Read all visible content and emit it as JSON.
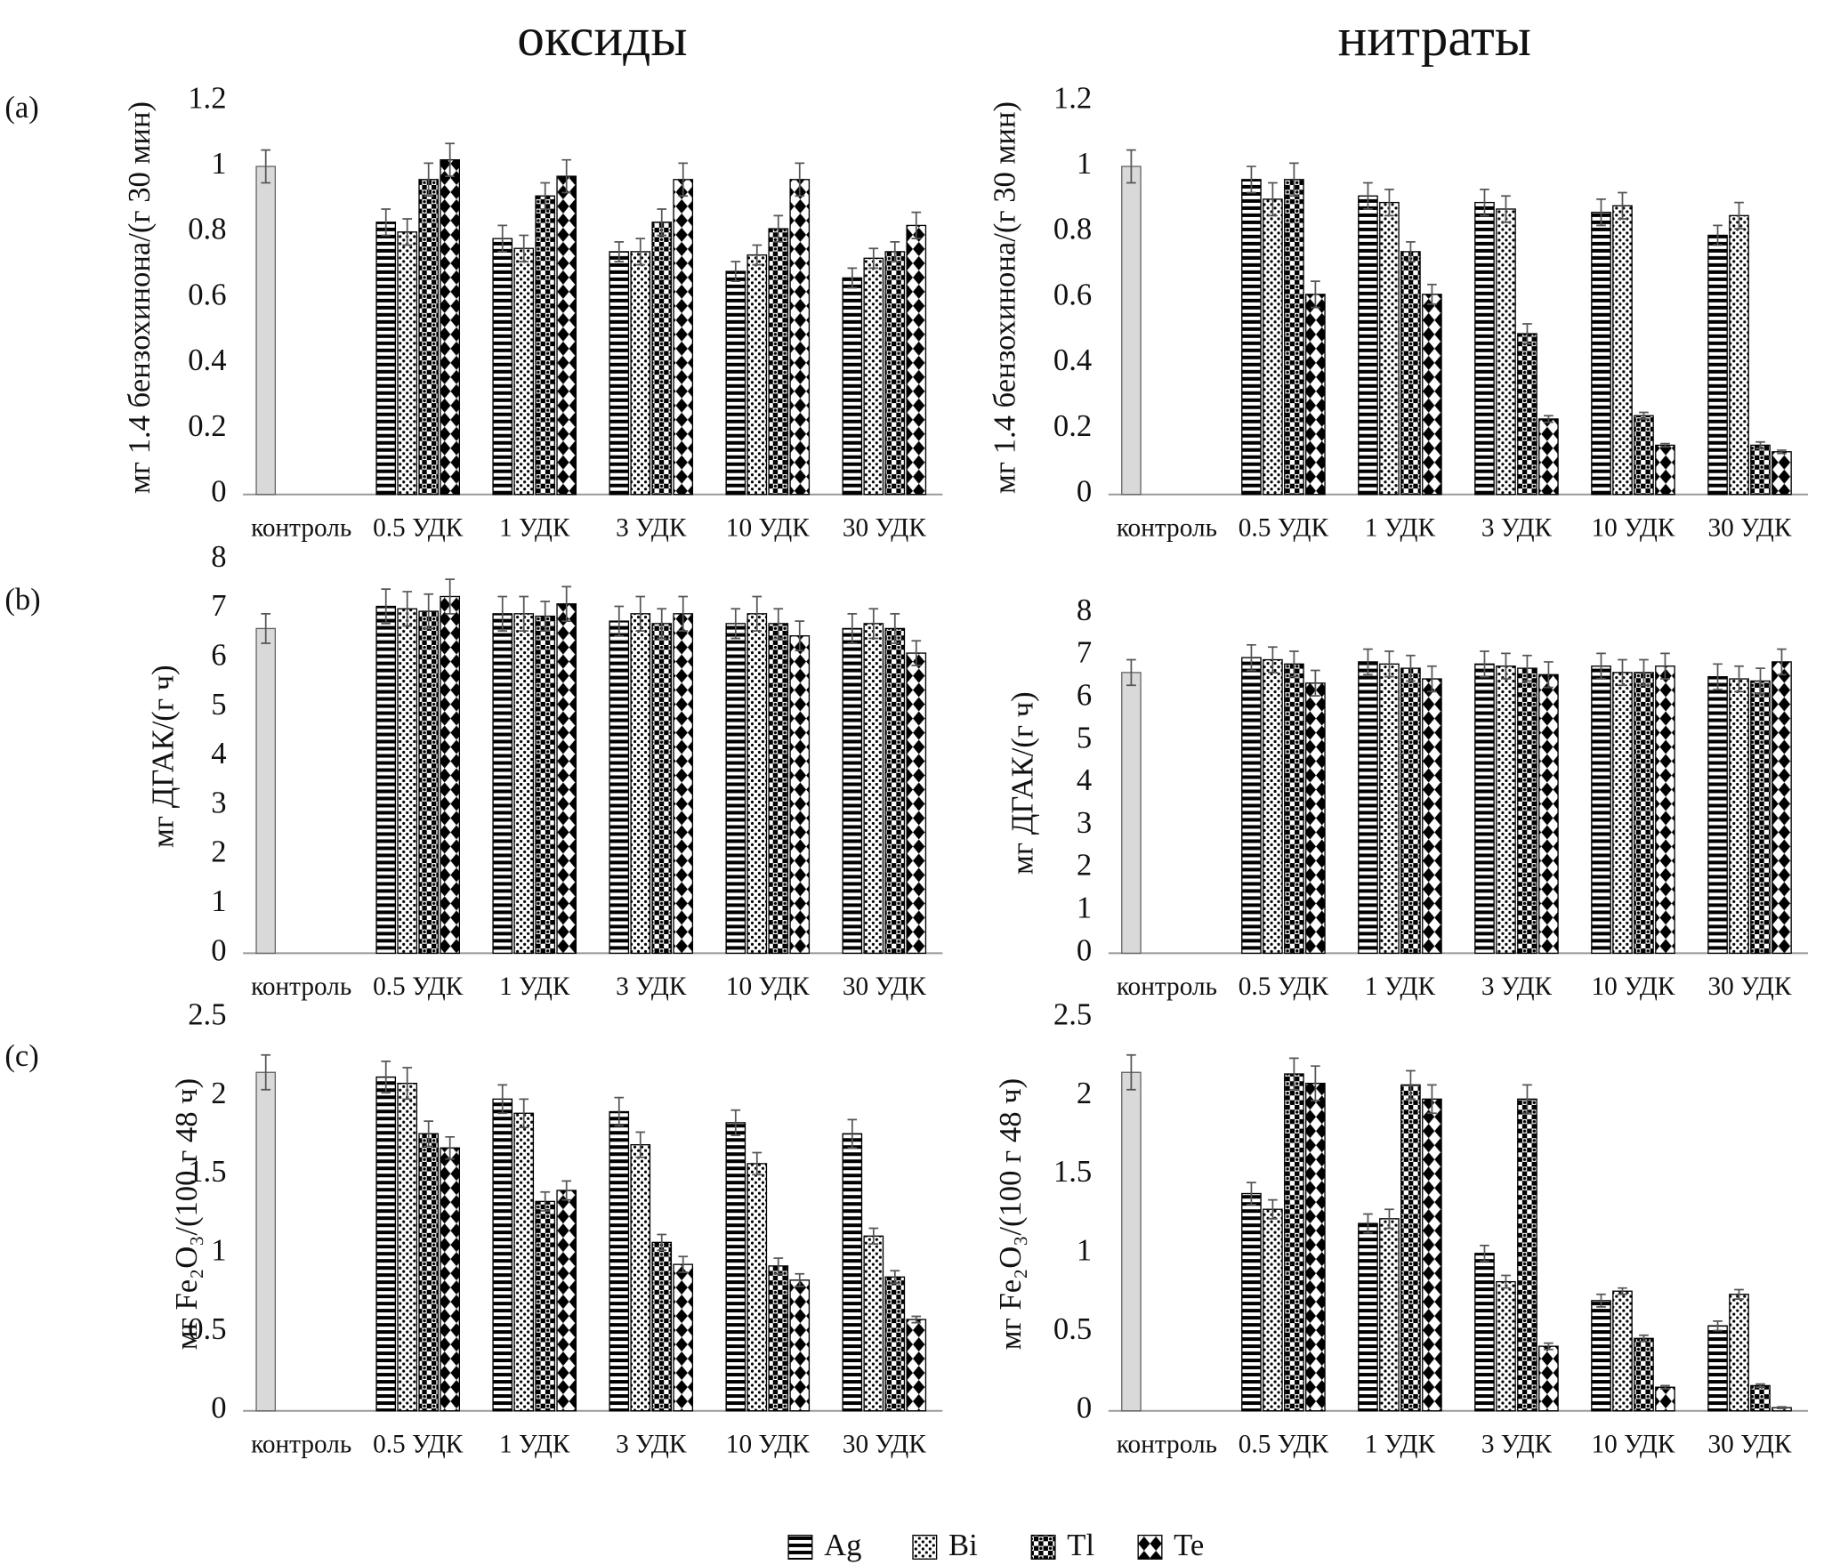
{
  "columns": [
    "оксиды",
    "нитраты"
  ],
  "panels": [
    "(a)",
    "(b)",
    "(c)"
  ],
  "chart_data": [
    {
      "type": "bar",
      "ylabel": "мг 1.4 бензохинона/(г 30 мин)",
      "categories": [
        "контроль",
        "0.5 УДК",
        "1 УДК",
        "3 УДК",
        "10 УДК",
        "30 УДК"
      ],
      "ylim": [
        0,
        1.2
      ],
      "yticks": [
        0,
        0.2,
        0.4,
        0.6,
        0.8,
        1,
        1.2
      ],
      "control": {
        "value": 1.0,
        "error": 0.05,
        "color": "#d9d9d9"
      },
      "series": [
        {
          "name": "Ag",
          "color": "#000000",
          "pattern": "hlines",
          "values": [
            null,
            0.83,
            0.78,
            0.74,
            0.68,
            0.66
          ],
          "errors": [
            null,
            0.04,
            0.04,
            0.03,
            0.03,
            0.03
          ]
        },
        {
          "name": "Bi",
          "color": "#000000",
          "pattern": "dots",
          "values": [
            null,
            0.8,
            0.75,
            0.74,
            0.73,
            0.72
          ],
          "errors": [
            null,
            0.04,
            0.04,
            0.04,
            0.03,
            0.03
          ]
        },
        {
          "name": "Tl",
          "color": "#000000",
          "pattern": "checker",
          "values": [
            null,
            0.96,
            0.91,
            0.83,
            0.81,
            0.74
          ],
          "errors": [
            null,
            0.05,
            0.04,
            0.04,
            0.04,
            0.03
          ]
        },
        {
          "name": "Te",
          "color": "#000000",
          "pattern": "diamonds",
          "values": [
            null,
            1.02,
            0.97,
            0.96,
            0.96,
            0.82
          ],
          "errors": [
            null,
            0.05,
            0.05,
            0.05,
            0.05,
            0.04
          ]
        }
      ]
    },
    {
      "type": "bar",
      "ylabel": "мг 1.4 бензохинона/(г 30 мин)",
      "categories": [
        "контроль",
        "0.5 УДК",
        "1 УДК",
        "3 УДК",
        "10 УДК",
        "30 УДК"
      ],
      "ylim": [
        0,
        1.2
      ],
      "yticks": [
        0,
        0.2,
        0.4,
        0.6,
        0.8,
        1,
        1.2
      ],
      "control": {
        "value": 1.0,
        "error": 0.05,
        "color": "#d9d9d9"
      },
      "series": [
        {
          "name": "Ag",
          "color": "#000000",
          "pattern": "hlines",
          "values": [
            null,
            0.96,
            0.91,
            0.89,
            0.86,
            0.79
          ],
          "errors": [
            null,
            0.04,
            0.04,
            0.04,
            0.04,
            0.03
          ]
        },
        {
          "name": "Bi",
          "color": "#000000",
          "pattern": "dots",
          "values": [
            null,
            0.9,
            0.89,
            0.87,
            0.88,
            0.85
          ],
          "errors": [
            null,
            0.05,
            0.04,
            0.04,
            0.04,
            0.04
          ]
        },
        {
          "name": "Tl",
          "color": "#000000",
          "pattern": "checker",
          "values": [
            null,
            0.96,
            0.74,
            0.49,
            0.24,
            0.15
          ],
          "errors": [
            null,
            0.05,
            0.03,
            0.03,
            0.01,
            0.01
          ]
        },
        {
          "name": "Te",
          "color": "#000000",
          "pattern": "diamonds",
          "values": [
            null,
            0.61,
            0.61,
            0.23,
            0.15,
            0.13
          ],
          "errors": [
            null,
            0.04,
            0.03,
            0.01,
            0.005,
            0.005
          ]
        }
      ]
    },
    {
      "type": "bar",
      "ylabel": "мг ДГАК/(г ч)",
      "categories": [
        "контроль",
        "0.5 УДК",
        "1 УДК",
        "3 УДК",
        "10 УДК",
        "30 УДК"
      ],
      "ylim": [
        0,
        8
      ],
      "yticks": [
        0,
        1,
        2,
        3,
        4,
        5,
        6,
        7,
        8
      ],
      "control": {
        "value": 6.6,
        "error": 0.3,
        "color": "#d9d9d9"
      },
      "series": [
        {
          "name": "Ag",
          "color": "#000000",
          "pattern": "hlines",
          "values": [
            null,
            7.05,
            6.9,
            6.75,
            6.7,
            6.6
          ],
          "errors": [
            null,
            0.35,
            0.35,
            0.3,
            0.3,
            0.3
          ]
        },
        {
          "name": "Bi",
          "color": "#000000",
          "pattern": "dots",
          "values": [
            null,
            7.0,
            6.9,
            6.9,
            6.9,
            6.7
          ],
          "errors": [
            null,
            0.35,
            0.35,
            0.35,
            0.35,
            0.3
          ]
        },
        {
          "name": "Tl",
          "color": "#000000",
          "pattern": "checker",
          "values": [
            null,
            6.95,
            6.85,
            6.7,
            6.7,
            6.6
          ],
          "errors": [
            null,
            0.35,
            0.3,
            0.3,
            0.3,
            0.3
          ]
        },
        {
          "name": "Te",
          "color": "#000000",
          "pattern": "diamonds",
          "values": [
            null,
            7.25,
            7.1,
            6.9,
            6.45,
            6.1
          ],
          "errors": [
            null,
            0.35,
            0.35,
            0.35,
            0.3,
            0.25
          ]
        }
      ]
    },
    {
      "type": "bar",
      "ylabel": "мг ДГАК/(г ч)",
      "categories": [
        "контроль",
        "0.5 УДК",
        "1 УДК",
        "3 УДК",
        "10 УДК",
        "30 УДК"
      ],
      "ylim": [
        0,
        8
      ],
      "yticks": [
        0,
        1,
        2,
        3,
        4,
        5,
        6,
        7,
        8
      ],
      "control": {
        "value": 6.6,
        "error": 0.3,
        "color": "#d9d9d9"
      },
      "series": [
        {
          "name": "Ag",
          "color": "#000000",
          "pattern": "hlines",
          "values": [
            null,
            6.95,
            6.85,
            6.8,
            6.75,
            6.5
          ],
          "errors": [
            null,
            0.3,
            0.3,
            0.3,
            0.3,
            0.3
          ]
        },
        {
          "name": "Bi",
          "color": "#000000",
          "pattern": "dots",
          "values": [
            null,
            6.9,
            6.8,
            6.75,
            6.6,
            6.45
          ],
          "errors": [
            null,
            0.3,
            0.3,
            0.3,
            0.3,
            0.3
          ]
        },
        {
          "name": "Tl",
          "color": "#000000",
          "pattern": "checker",
          "values": [
            null,
            6.8,
            6.7,
            6.7,
            6.6,
            6.4
          ],
          "errors": [
            null,
            0.3,
            0.3,
            0.3,
            0.3,
            0.3
          ]
        },
        {
          "name": "Te",
          "color": "#000000",
          "pattern": "diamonds",
          "values": [
            null,
            6.35,
            6.45,
            6.55,
            6.75,
            6.85
          ],
          "errors": [
            null,
            0.3,
            0.3,
            0.3,
            0.3,
            0.3
          ]
        }
      ]
    },
    {
      "type": "bar",
      "ylabel": "мг Fe₂O₃/(100 г 48 ч)",
      "categories": [
        "контроль",
        "0.5 УДК",
        "1 УДК",
        "3 УДК",
        "10 УДК",
        "30 УДК"
      ],
      "ylim": [
        0,
        2.5
      ],
      "yticks": [
        0,
        0.5,
        1,
        1.5,
        2,
        2.5
      ],
      "control": {
        "value": 2.15,
        "error": 0.11,
        "color": "#d9d9d9"
      },
      "series": [
        {
          "name": "Ag",
          "color": "#000000",
          "pattern": "hlines",
          "values": [
            null,
            2.12,
            1.98,
            1.9,
            1.83,
            1.76
          ],
          "errors": [
            null,
            0.1,
            0.09,
            0.09,
            0.08,
            0.09
          ]
        },
        {
          "name": "Bi",
          "color": "#000000",
          "pattern": "dots",
          "values": [
            null,
            2.08,
            1.89,
            1.69,
            1.57,
            1.11
          ],
          "errors": [
            null,
            0.1,
            0.09,
            0.08,
            0.07,
            0.05
          ]
        },
        {
          "name": "Tl",
          "color": "#000000",
          "pattern": "checker",
          "values": [
            null,
            1.76,
            1.33,
            1.07,
            0.92,
            0.85
          ],
          "errors": [
            null,
            0.08,
            0.06,
            0.05,
            0.05,
            0.04
          ]
        },
        {
          "name": "Te",
          "color": "#000000",
          "pattern": "diamonds",
          "values": [
            null,
            1.67,
            1.4,
            0.93,
            0.83,
            0.58
          ],
          "errors": [
            null,
            0.07,
            0.06,
            0.05,
            0.04,
            0.02
          ]
        }
      ]
    },
    {
      "type": "bar",
      "ylabel": "мг Fe₂O₃/(100 г 48 ч)",
      "categories": [
        "контроль",
        "0.5 УДК",
        "1 УДК",
        "3 УДК",
        "10 УДК",
        "30 УДК"
      ],
      "ylim": [
        0,
        2.5
      ],
      "yticks": [
        0,
        0.5,
        1,
        1.5,
        2,
        2.5
      ],
      "control": {
        "value": 2.15,
        "error": 0.11,
        "color": "#d9d9d9"
      },
      "series": [
        {
          "name": "Ag",
          "color": "#000000",
          "pattern": "hlines",
          "values": [
            null,
            1.38,
            1.19,
            1.0,
            0.7,
            0.54
          ],
          "errors": [
            null,
            0.07,
            0.06,
            0.05,
            0.04,
            0.03
          ]
        },
        {
          "name": "Bi",
          "color": "#000000",
          "pattern": "dots",
          "values": [
            null,
            1.28,
            1.22,
            0.82,
            0.76,
            0.74
          ],
          "errors": [
            null,
            0.06,
            0.06,
            0.04,
            0.02,
            0.03
          ]
        },
        {
          "name": "Tl",
          "color": "#000000",
          "pattern": "checker",
          "values": [
            null,
            2.14,
            2.07,
            1.98,
            0.46,
            0.16
          ],
          "errors": [
            null,
            0.1,
            0.09,
            0.09,
            0.02,
            0.01
          ]
        },
        {
          "name": "Te",
          "color": "#000000",
          "pattern": "diamonds",
          "values": [
            null,
            2.08,
            1.98,
            0.41,
            0.15,
            0.02
          ],
          "errors": [
            null,
            0.11,
            0.09,
            0.02,
            0.01,
            0.005
          ]
        }
      ]
    }
  ]
}
